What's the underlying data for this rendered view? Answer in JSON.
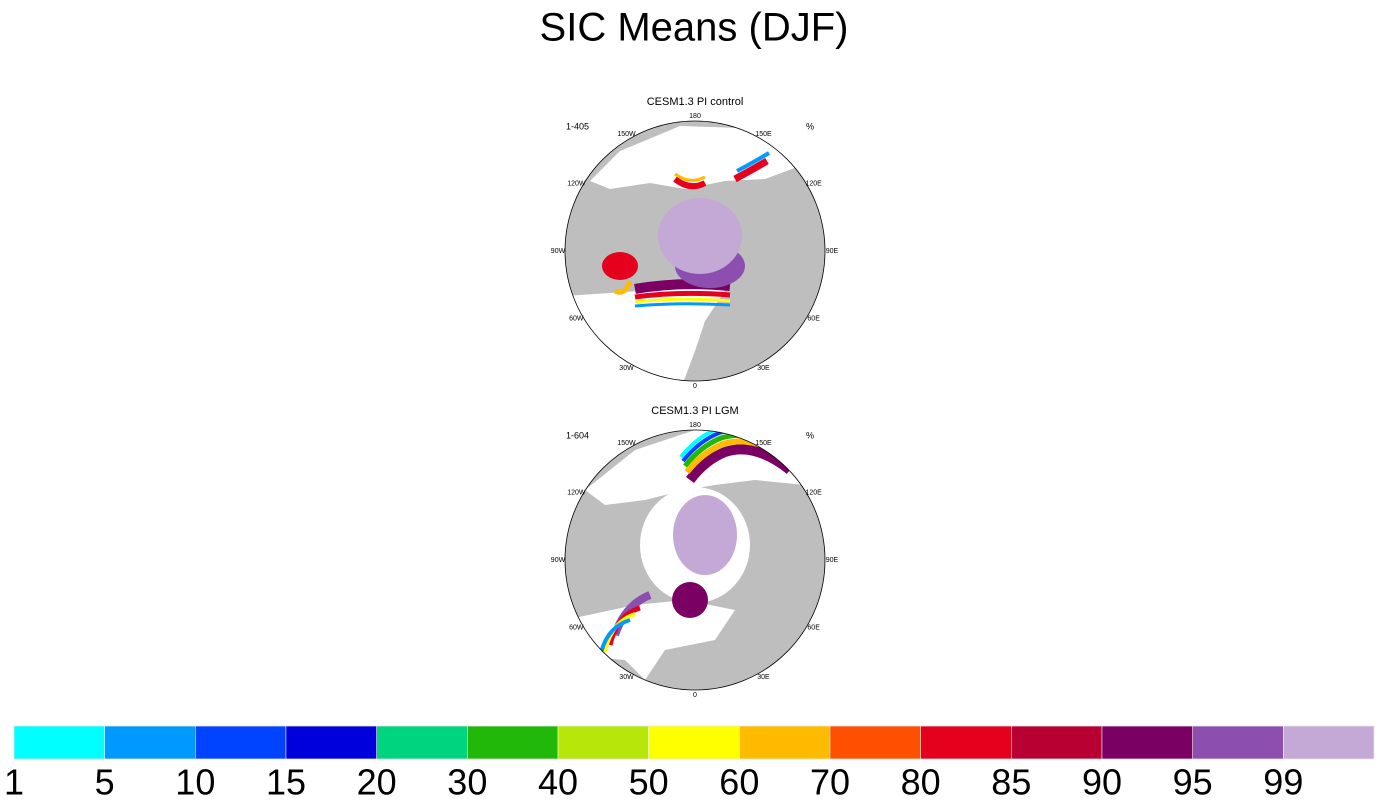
{
  "title": "SIC Means (DJF)",
  "panels": [
    {
      "title": "CESM1.3 PI control",
      "years": "1-405",
      "units": "%",
      "longitudes": [
        "180",
        "150E",
        "120E",
        "90E",
        "60E",
        "30E",
        "0",
        "30W",
        "60W",
        "90W",
        "120W",
        "150W"
      ]
    },
    {
      "title": "CESM1.3 PI LGM",
      "years": "1-604",
      "units": "%",
      "longitudes": [
        "180",
        "150E",
        "120E",
        "90E",
        "60E",
        "30E",
        "0",
        "30W",
        "60W",
        "90W",
        "120W",
        "150W"
      ]
    }
  ],
  "colorbar": {
    "colors": [
      "#00ffff",
      "#0099ff",
      "#0044ff",
      "#0000dd",
      "#00d47f",
      "#22b80a",
      "#b6e60a",
      "#ffff00",
      "#ffbb00",
      "#ff4f00",
      "#e5001e",
      "#b80032",
      "#7a0063",
      "#8c4fb0",
      "#c4a8d6"
    ],
    "labels": [
      "1",
      "5",
      "10",
      "15",
      "20",
      "30",
      "40",
      "50",
      "60",
      "70",
      "80",
      "85",
      "90",
      "95",
      "99"
    ]
  }
}
